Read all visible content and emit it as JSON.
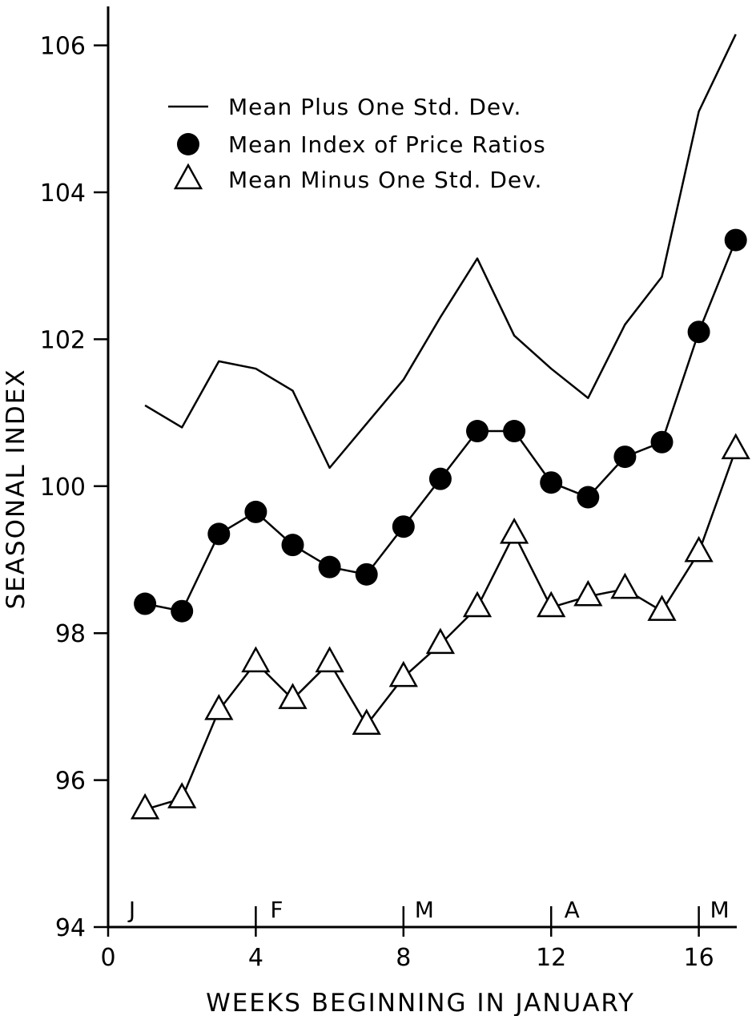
{
  "chart_data": {
    "type": "line",
    "xlabel": "WEEKS BEGINNING IN JANUARY",
    "ylabel": "SEASONAL INDEX",
    "xlim": [
      0,
      17
    ],
    "ylim": [
      94,
      106.5
    ],
    "x_ticks": [
      0,
      4,
      8,
      12,
      16
    ],
    "y_ticks": [
      94,
      96,
      98,
      100,
      102,
      104,
      106
    ],
    "grid": false,
    "legend_position": "top-left",
    "month_markers": [
      {
        "label": "J",
        "x": 0
      },
      {
        "label": "F",
        "x": 4
      },
      {
        "label": "M",
        "x": 8
      },
      {
        "label": "A",
        "x": 12
      },
      {
        "label": "M",
        "x": 16
      }
    ],
    "x": [
      1,
      2,
      3,
      4,
      5,
      6,
      7,
      8,
      9,
      10,
      11,
      12,
      13,
      14,
      15,
      16,
      17
    ],
    "series": [
      {
        "name": "Mean Plus One Std. Dev.",
        "marker": "none",
        "values": [
          101.1,
          100.8,
          101.7,
          101.6,
          101.3,
          100.25,
          100.85,
          101.45,
          102.3,
          103.1,
          102.05,
          101.6,
          101.2,
          102.2,
          102.85,
          105.1,
          106.15
        ]
      },
      {
        "name": "Mean Index of Price Ratios",
        "marker": "filled-circle",
        "values": [
          98.4,
          98.3,
          99.35,
          99.65,
          99.2,
          98.9,
          98.8,
          99.45,
          100.1,
          100.75,
          100.75,
          100.05,
          99.85,
          100.4,
          100.6,
          102.1,
          103.35
        ]
      },
      {
        "name": "Mean Minus One Std. Dev.",
        "marker": "open-triangle",
        "values": [
          95.6,
          95.75,
          96.95,
          97.6,
          97.1,
          97.6,
          96.75,
          97.4,
          97.85,
          98.35,
          99.35,
          98.35,
          98.5,
          98.6,
          98.3,
          99.1,
          100.5
        ]
      }
    ]
  }
}
